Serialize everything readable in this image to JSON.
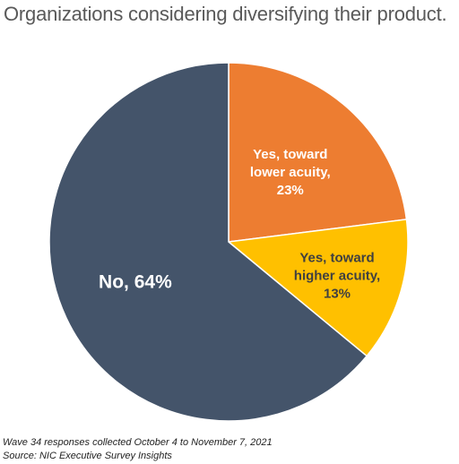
{
  "title": "Organizations considering diversifying their product.",
  "footnotes": {
    "wave": "Wave 34 responses collected  October 4 to November 7, 2021",
    "source": "Source: NIC Executive Survey Insights"
  },
  "chart_data": {
    "type": "pie",
    "title": "Organizations considering diversifying their product.",
    "slices": [
      {
        "label_lines": [
          "Yes, toward",
          "lower acuity,",
          "23%"
        ],
        "value": 23,
        "color": "#ED7D31",
        "label_color": "#ffffff"
      },
      {
        "label_lines": [
          "Yes, toward",
          "higher acuity,",
          "13%"
        ],
        "value": 13,
        "color": "#FFC000",
        "label_color": "#404040"
      },
      {
        "label_lines": [
          "No, 64%"
        ],
        "value": 64,
        "color": "#44546A",
        "label_color": "#ffffff"
      }
    ],
    "start_angle_deg": 0,
    "direction": "clockwise",
    "legend": "none"
  }
}
